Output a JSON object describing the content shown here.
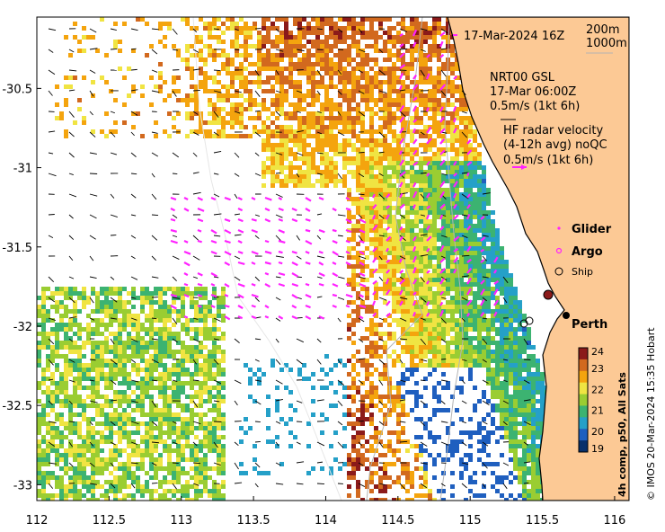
{
  "header": {
    "date_label": "17-Mar-2024 16Z",
    "depth_200": "200m",
    "depth_1000": "1000m"
  },
  "legend": {
    "gsl_line1": "NRT00 GSL",
    "gsl_line2": "17-Mar 06:00Z",
    "gsl_line3": "0.5m/s (1kt 6h)",
    "hf_line1": "HF radar velocity",
    "hf_line2": "(4-12h avg) noQC",
    "hf_line3": "0.5m/s (1kt 6h)",
    "glider": "Glider",
    "argo": "Argo",
    "ship": "Ship",
    "city": "Perth"
  },
  "axes": {
    "x_ticks": [
      "112",
      "112.5",
      "113",
      "113.5",
      "114",
      "114.5",
      "115",
      "115.5",
      "116"
    ],
    "y_ticks": [
      "-30.5",
      "-31",
      "-31.5",
      "-32",
      "-32.5",
      "-33"
    ],
    "xlim": [
      112,
      116.1
    ],
    "ylim": [
      -33.1,
      -30.05
    ]
  },
  "colorbar": {
    "title": "4h comp, p50, All Sats",
    "ticks": [
      "24",
      "23",
      "22",
      "21",
      "20",
      "19"
    ],
    "range": [
      19,
      24
    ],
    "colors": [
      "#08306b",
      "#1f5fbf",
      "#25a0c8",
      "#3cb371",
      "#9acd32",
      "#f0e442",
      "#f4a40e",
      "#d2691e",
      "#8b1a1a"
    ]
  },
  "credit": "© IMOS 20-Mar-2024 15:35 Hobart",
  "colors": {
    "land": "#fcc995",
    "vector_magenta": "#ff22ff",
    "vector_black": "#000000",
    "contour": "#b4b4b4"
  }
}
